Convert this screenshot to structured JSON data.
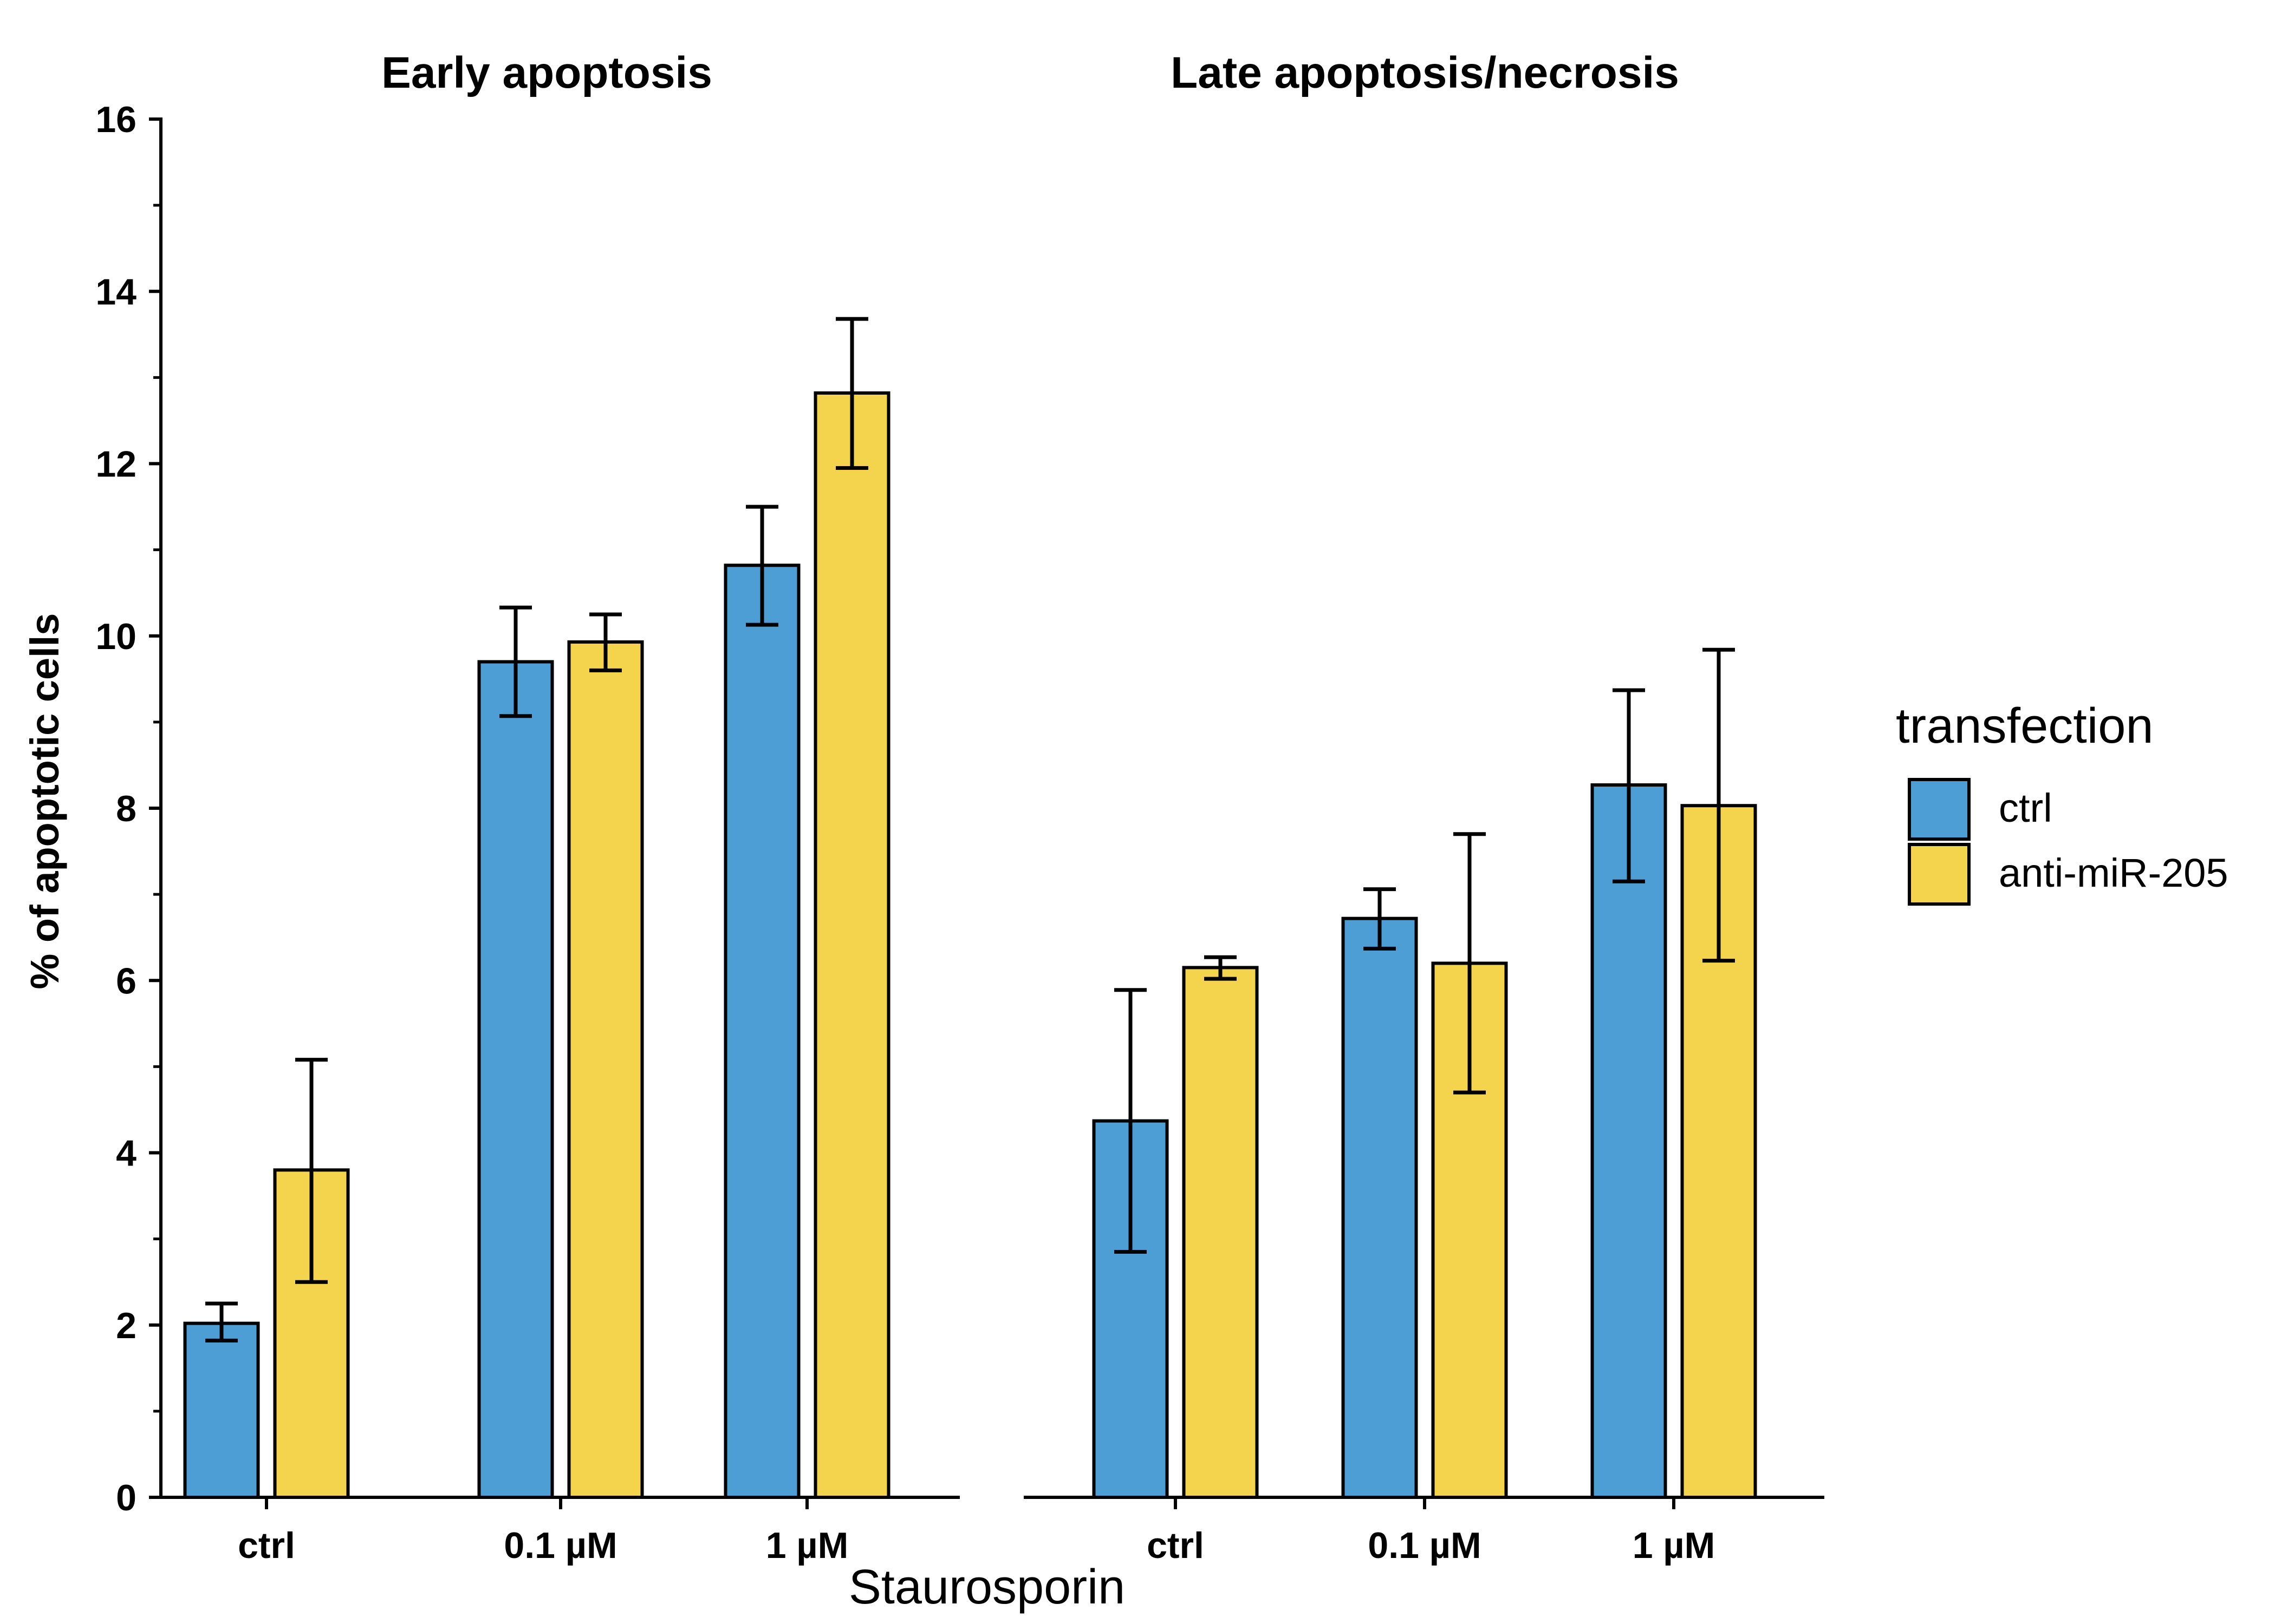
{
  "chart_data": {
    "type": "bar",
    "xlabel": "Staurosporin",
    "ylabel": "% of apoptotic cells",
    "ylim": [
      0,
      16
    ],
    "y_ticks": [
      "0",
      "2",
      "4",
      "6",
      "8",
      "10",
      "12",
      "14",
      "16"
    ],
    "categories": [
      "ctrl",
      "0.1 µM",
      "1 µM"
    ],
    "legend": {
      "title": "transfection",
      "placement": "right",
      "entries": [
        "ctrl",
        "anti-miR-205"
      ]
    },
    "colors": {
      "ctrl": "#4d9ed5",
      "anti-miR-205": "#f4d44d"
    },
    "panels": [
      {
        "title": "Early apoptosis",
        "series": [
          {
            "name": "ctrl",
            "values": [
              2.02,
              9.7,
              10.82
            ],
            "error_low": [
              1.82,
              9.07,
              10.13
            ],
            "error_high": [
              2.25,
              10.33,
              11.5
            ]
          },
          {
            "name": "anti-miR-205",
            "values": [
              3.8,
              9.93,
              12.82
            ],
            "error_low": [
              2.5,
              9.6,
              11.95
            ],
            "error_high": [
              5.08,
              10.25,
              13.68
            ]
          }
        ]
      },
      {
        "title": "Late apoptosis/necrosis",
        "series": [
          {
            "name": "ctrl",
            "values": [
              4.37,
              6.72,
              8.27
            ],
            "error_low": [
              2.85,
              6.37,
              7.15
            ],
            "error_high": [
              5.89,
              7.06,
              9.37
            ]
          },
          {
            "name": "anti-miR-205",
            "values": [
              6.15,
              6.2,
              8.03
            ],
            "error_low": [
              6.02,
              4.7,
              6.23
            ],
            "error_high": [
              6.27,
              7.7,
              9.84
            ]
          }
        ]
      }
    ]
  }
}
